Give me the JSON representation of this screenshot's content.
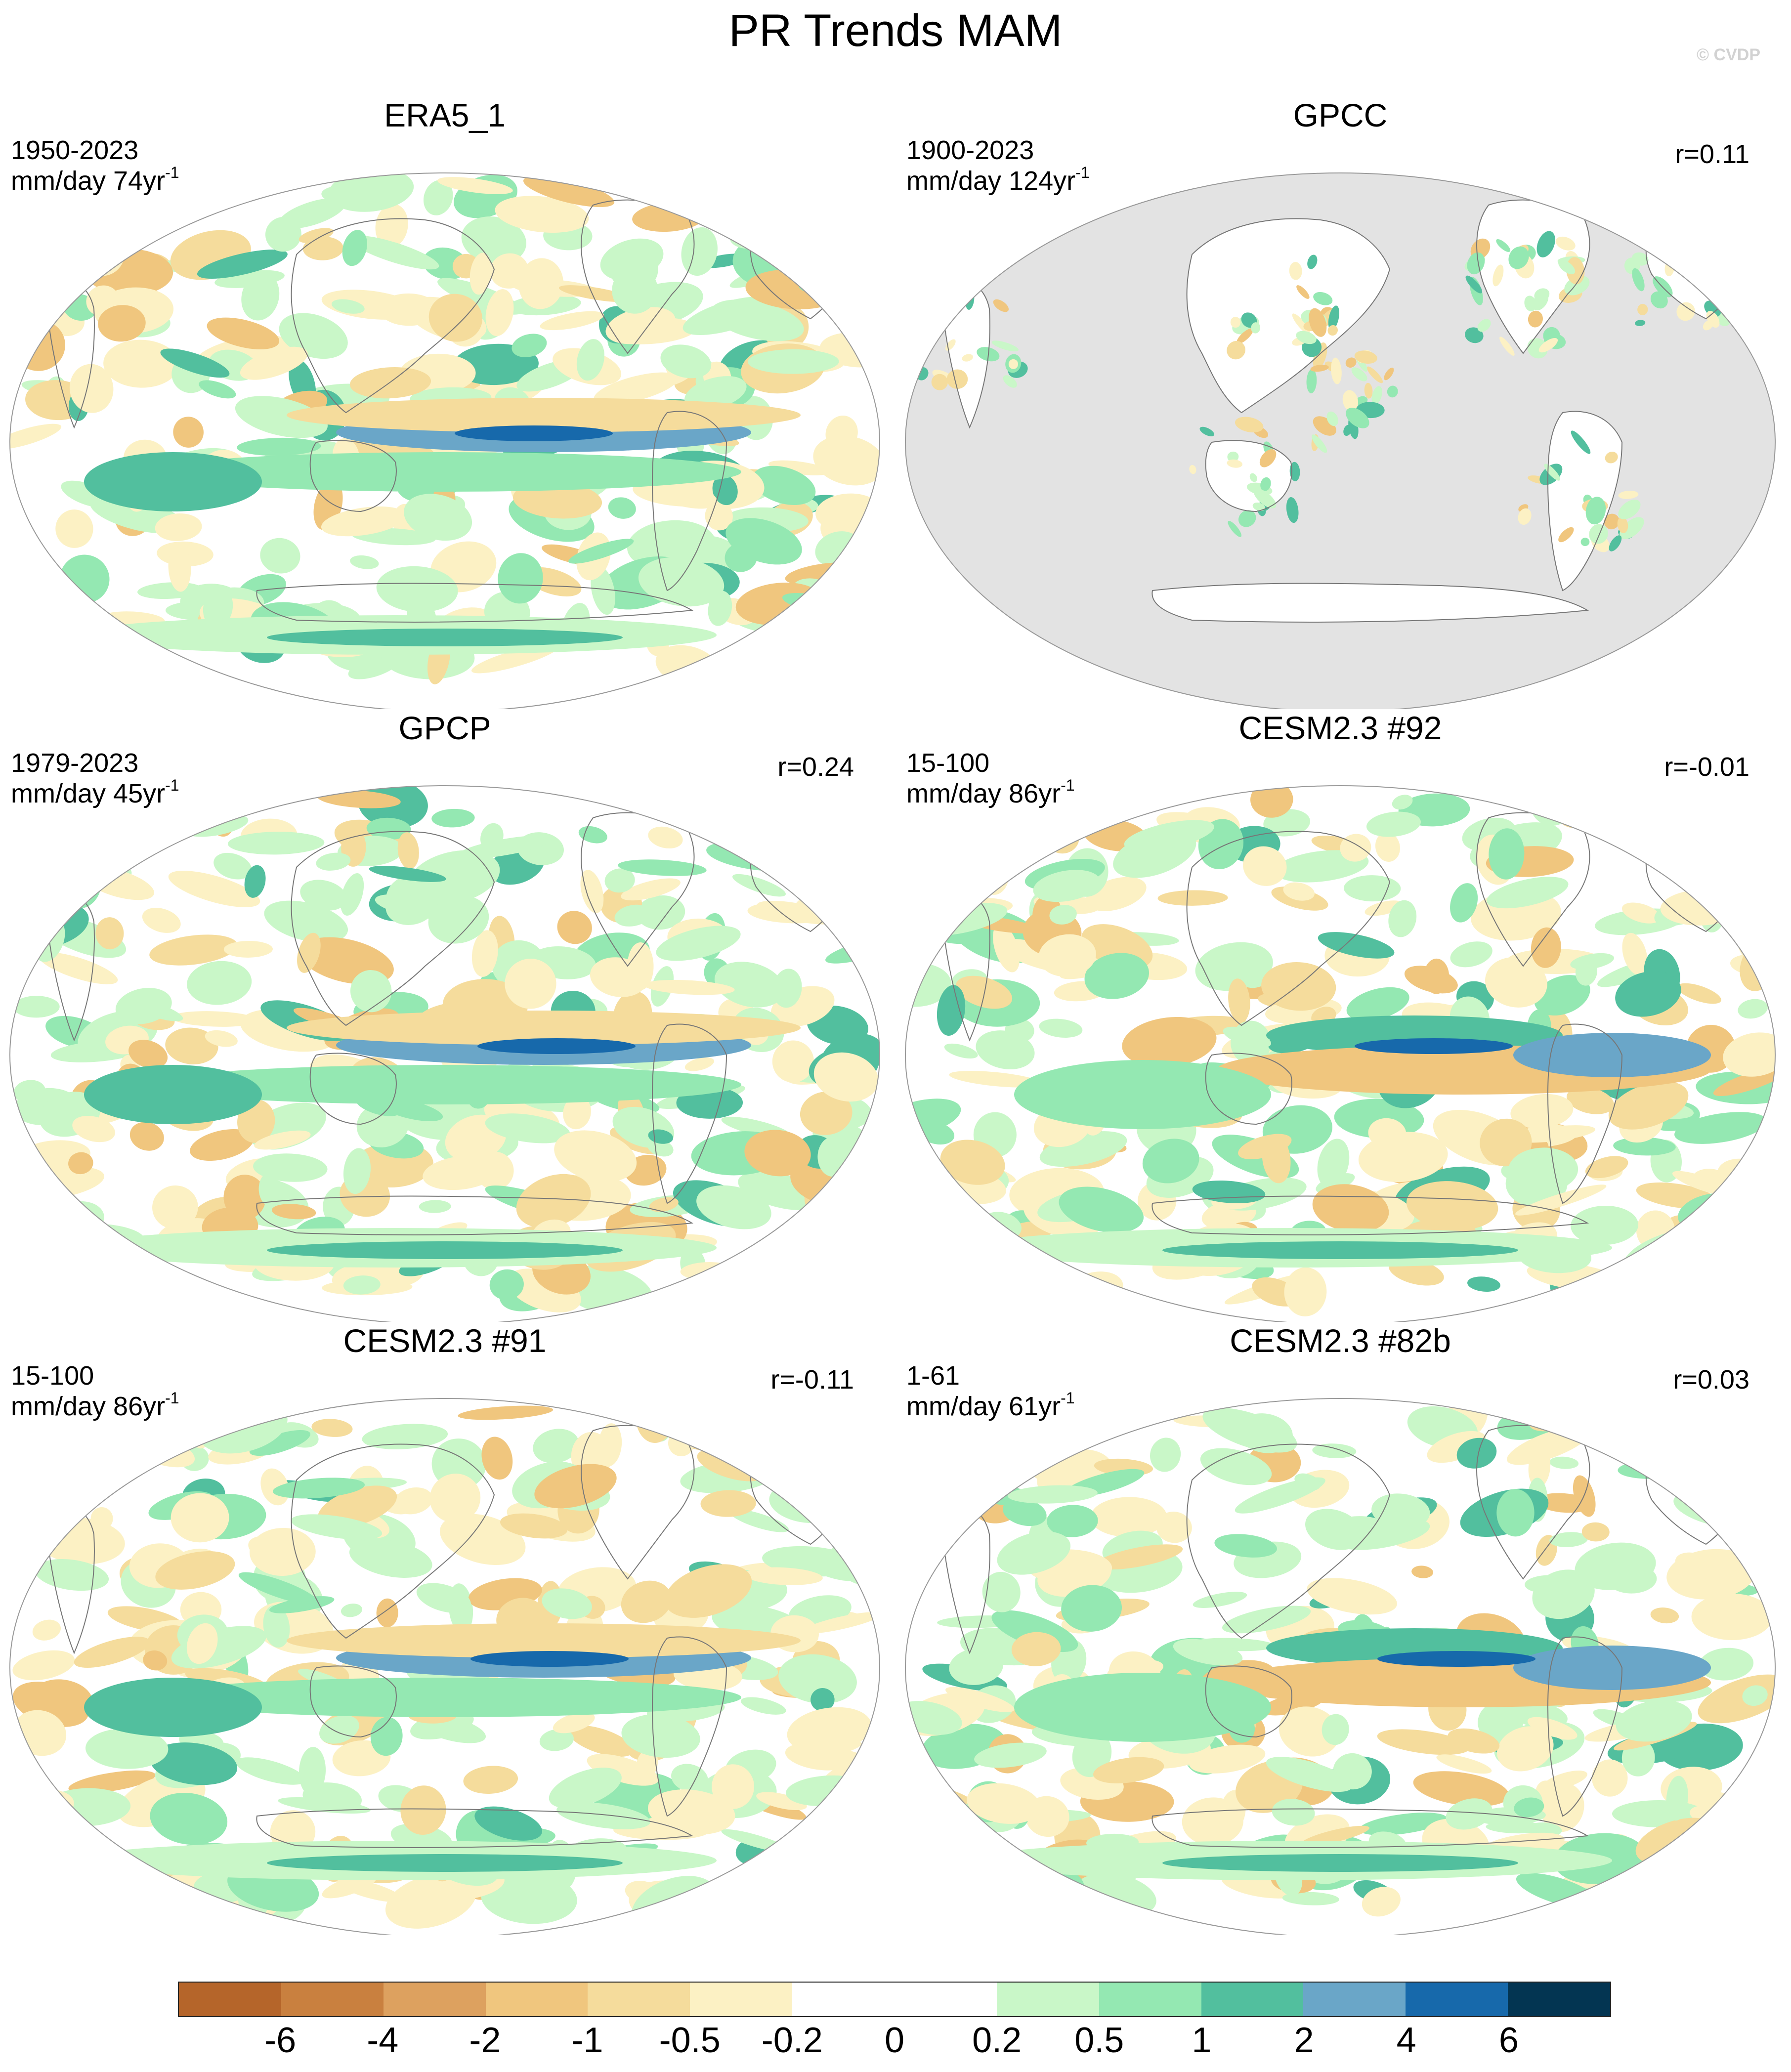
{
  "title": "PR Trends MAM",
  "copyright": "© CVDP",
  "panels": [
    {
      "title": "ERA5_1",
      "period": "1950-2023",
      "units": "mm/day 74yr",
      "units_exp": "-1",
      "corr": "",
      "gray_ocean": false
    },
    {
      "title": "GPCC",
      "period": "1900-2023",
      "units": "mm/day 124yr",
      "units_exp": "-1",
      "corr": "r=0.11",
      "gray_ocean": true
    },
    {
      "title": "GPCP",
      "period": "1979-2023",
      "units": "mm/day 45yr",
      "units_exp": "-1",
      "corr": "r=0.24",
      "gray_ocean": false
    },
    {
      "title": "CESM2.3 #92",
      "period": "15-100",
      "units": "mm/day 86yr",
      "units_exp": "-1",
      "corr": "r=-0.01",
      "gray_ocean": false
    },
    {
      "title": "CESM2.3 #91",
      "period": "15-100",
      "units": "mm/day 86yr",
      "units_exp": "-1",
      "corr": "r=-0.11",
      "gray_ocean": false
    },
    {
      "title": "CESM2.3 #82b",
      "period": "1-61",
      "units": "mm/day 61yr",
      "units_exp": "-1",
      "corr": "r=0.03",
      "gray_ocean": false
    }
  ],
  "colorbar": {
    "colors": [
      "#b5652a",
      "#c9803f",
      "#dda15f",
      "#f0c67e",
      "#f5dc9c",
      "#fcf1c4",
      "#ffffff",
      "#ffffff",
      "#c9f7c8",
      "#94e8b2",
      "#52bf9e",
      "#6aa6c8",
      "#1769ab",
      "#033552"
    ],
    "labels": [
      "-6",
      "-4",
      "-2",
      "-1",
      "-0.5",
      "-0.2",
      "0",
      "0.2",
      "0.5",
      "1",
      "2",
      "4",
      "6"
    ]
  }
}
